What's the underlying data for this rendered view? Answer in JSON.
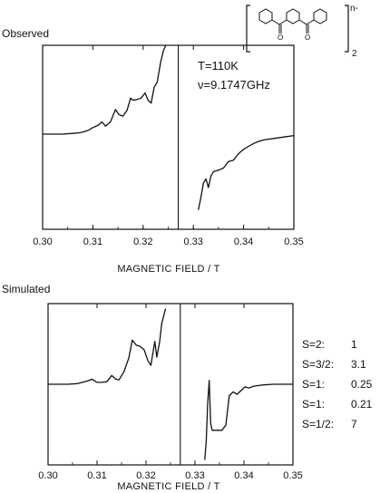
{
  "header_structure": {
    "charge_label": "n-",
    "subscript": "2"
  },
  "chart_data": [
    {
      "type": "line",
      "panel_title": "Observed",
      "xlabel": "MAGNETIC FIELD / T",
      "ylabel": "",
      "xlim": [
        0.3,
        0.35
      ],
      "x_ticks": [
        "0.30",
        "0.31",
        "0.32",
        "0.33",
        "0.34",
        "0.35"
      ],
      "params": {
        "temperature": "T=110K",
        "frequency": "ν=9.1747GHz"
      },
      "center_line_x": 0.327,
      "series": [
        {
          "points": [
            [
              0.3,
              0.0
            ],
            [
              0.302,
              0.0
            ],
            [
              0.304,
              0.0
            ],
            [
              0.306,
              0.01
            ],
            [
              0.3075,
              0.02
            ],
            [
              0.309,
              0.05
            ],
            [
              0.31,
              0.09
            ],
            [
              0.311,
              0.12
            ],
            [
              0.3118,
              0.17
            ],
            [
              0.3125,
              0.11
            ],
            [
              0.3135,
              0.17
            ],
            [
              0.3145,
              0.34
            ],
            [
              0.3152,
              0.27
            ],
            [
              0.316,
              0.25
            ],
            [
              0.3168,
              0.33
            ],
            [
              0.3175,
              0.5
            ],
            [
              0.318,
              0.47
            ],
            [
              0.3188,
              0.48
            ],
            [
              0.3196,
              0.5
            ],
            [
              0.3204,
              0.57
            ],
            [
              0.321,
              0.47
            ],
            [
              0.3216,
              0.43
            ],
            [
              0.3222,
              0.65
            ],
            [
              0.3228,
              0.72
            ],
            [
              0.3235,
              1.0
            ],
            [
              0.324,
              1.15
            ],
            [
              0.3245,
              1.25
            ]
          ]
        },
        {
          "points": [
            [
              0.331,
              -1.05
            ],
            [
              0.3315,
              -0.88
            ],
            [
              0.332,
              -0.68
            ],
            [
              0.3325,
              -0.62
            ],
            [
              0.333,
              -0.74
            ],
            [
              0.3335,
              -0.58
            ],
            [
              0.334,
              -0.52
            ],
            [
              0.335,
              -0.5
            ],
            [
              0.336,
              -0.47
            ],
            [
              0.337,
              -0.38
            ],
            [
              0.338,
              -0.36
            ],
            [
              0.339,
              -0.27
            ],
            [
              0.34,
              -0.21
            ],
            [
              0.341,
              -0.17
            ],
            [
              0.342,
              -0.13
            ],
            [
              0.343,
              -0.1
            ],
            [
              0.344,
              -0.08
            ],
            [
              0.346,
              -0.06
            ],
            [
              0.348,
              -0.04
            ],
            [
              0.35,
              -0.02
            ]
          ]
        }
      ],
      "ylim": [
        -1.25,
        1.25
      ]
    },
    {
      "type": "line",
      "panel_title": "Simulated",
      "xlabel": "MAGNETIC FIELD / T",
      "ylabel": "",
      "xlim": [
        0.3,
        0.35
      ],
      "x_ticks": [
        "0.30",
        "0.31",
        "0.32",
        "0.33",
        "0.34",
        "0.35"
      ],
      "center_line_x": 0.327,
      "series": [
        {
          "points": [
            [
              0.3,
              0.0
            ],
            [
              0.304,
              0.0
            ],
            [
              0.306,
              0.01
            ],
            [
              0.308,
              0.05
            ],
            [
              0.309,
              0.08
            ],
            [
              0.31,
              0.03
            ],
            [
              0.311,
              0.03
            ],
            [
              0.312,
              0.04
            ],
            [
              0.313,
              0.14
            ],
            [
              0.3138,
              0.08
            ],
            [
              0.3145,
              0.07
            ],
            [
              0.3155,
              0.2
            ],
            [
              0.3165,
              0.42
            ],
            [
              0.3172,
              0.7
            ],
            [
              0.318,
              0.62
            ],
            [
              0.3188,
              0.6
            ],
            [
              0.3196,
              0.55
            ],
            [
              0.3204,
              0.37
            ],
            [
              0.321,
              0.3
            ],
            [
              0.3218,
              0.68
            ],
            [
              0.3222,
              0.43
            ],
            [
              0.3228,
              0.68
            ],
            [
              0.3232,
              0.96
            ],
            [
              0.324,
              1.2
            ]
          ]
        },
        {
          "points": [
            [
              0.332,
              -1.2
            ],
            [
              0.3323,
              -0.9
            ],
            [
              0.3326,
              -0.3
            ],
            [
              0.3329,
              0.06
            ],
            [
              0.3332,
              -0.62
            ],
            [
              0.3335,
              -0.73
            ],
            [
              0.3345,
              -0.73
            ],
            [
              0.3355,
              -0.73
            ],
            [
              0.3363,
              -0.65
            ],
            [
              0.337,
              -0.18
            ],
            [
              0.3378,
              -0.12
            ],
            [
              0.3386,
              -0.16
            ],
            [
              0.3394,
              -0.1
            ],
            [
              0.3402,
              -0.04
            ],
            [
              0.341,
              -0.06
            ],
            [
              0.342,
              -0.03
            ],
            [
              0.343,
              -0.02
            ],
            [
              0.344,
              -0.01
            ],
            [
              0.346,
              0.0
            ],
            [
              0.35,
              0.0
            ]
          ]
        }
      ],
      "ylim": [
        -1.25,
        1.25
      ],
      "spin_weights": [
        {
          "label": "S=2:",
          "value": "1"
        },
        {
          "label": "S=3/2:",
          "value": "3.1"
        },
        {
          "label": "S=1:",
          "value": "0.25"
        },
        {
          "label": "S=1:",
          "value": "0.21"
        },
        {
          "label": "S=1/2:",
          "value": "7"
        }
      ]
    }
  ]
}
